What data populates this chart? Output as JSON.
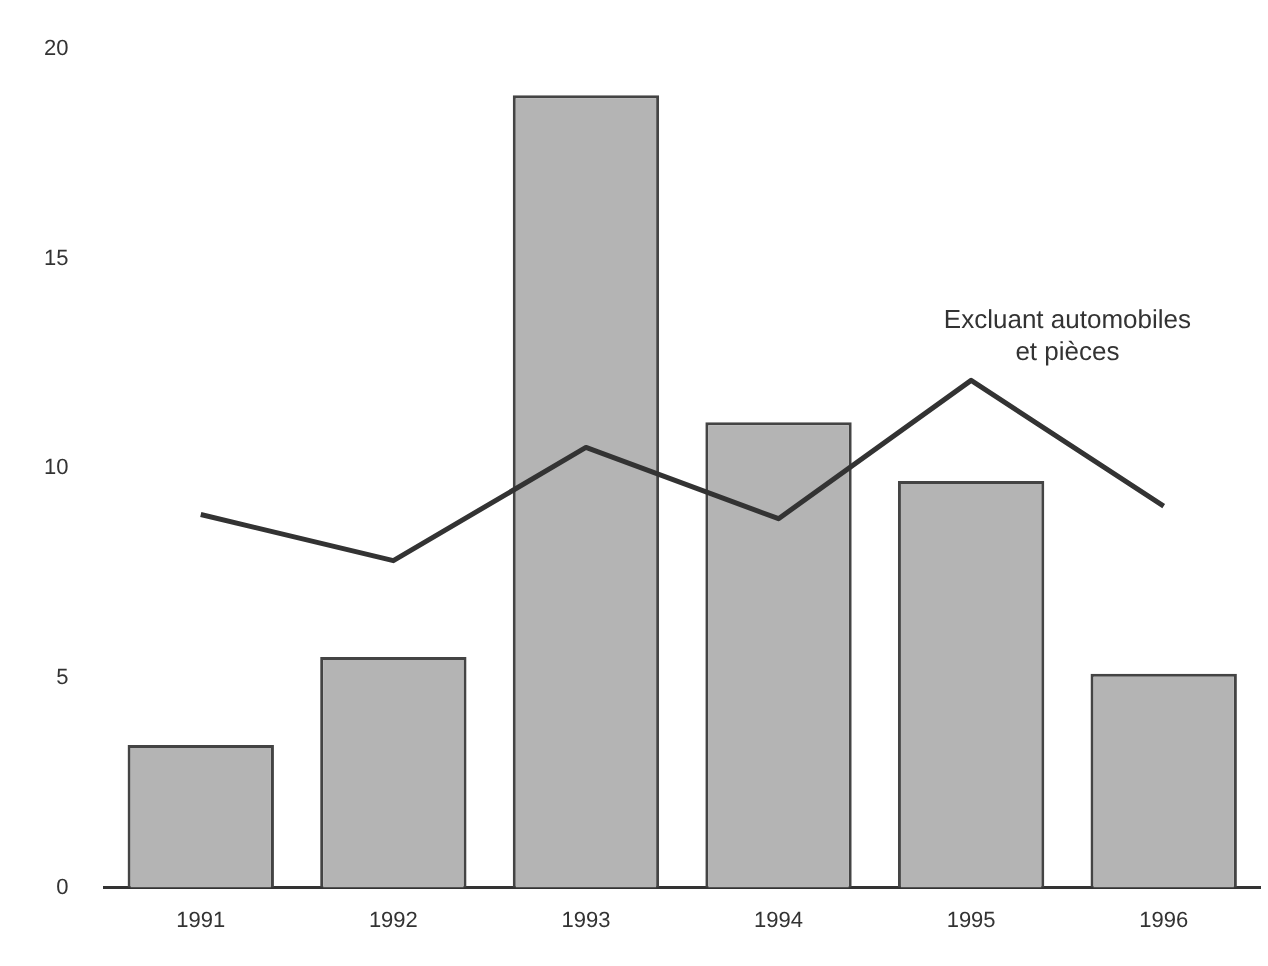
{
  "chart_data": {
    "type": "bar",
    "categories": [
      "1991",
      "1992",
      "1993",
      "1994",
      "1995",
      "1996"
    ],
    "series": [
      {
        "color": "#b4b4b4",
        "values": [
          3.4,
          5.5,
          18.9,
          11.1,
          9.7,
          5.1
        ]
      },
      {
        "type": "line",
        "name": "Excluant automobiles et pièces",
        "color": "#333333",
        "values": [
          8.9,
          7.8,
          10.5,
          8.8,
          12.1,
          9.1
        ]
      }
    ],
    "ylim": [
      0,
      20
    ],
    "yticks": [
      0,
      5,
      10,
      15,
      20
    ],
    "grid": false,
    "legend": false,
    "marker": "none",
    "line_style": "solid"
  }
}
